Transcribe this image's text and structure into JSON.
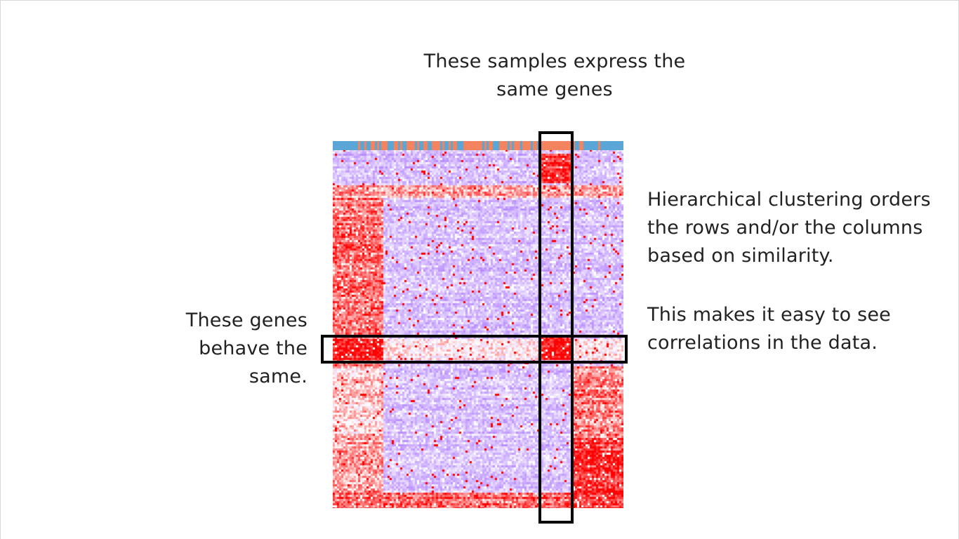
{
  "captions": {
    "top": {
      "line1": "These samples express the",
      "line2": "same genes"
    },
    "right": {
      "line1": "Hierarchical clustering orders",
      "line2": "the rows and/or the columns",
      "line3": "based on similarity."
    },
    "right_2": {
      "line1": "This makes it easy to see",
      "line2": "correlations in the data."
    },
    "left": {
      "line1": "These genes",
      "line2": "behave the",
      "line3": "same."
    }
  },
  "colors": {
    "low": "#b88cff",
    "mid": "#ffffff",
    "high": "#ff0000",
    "sample_group_a": "#5aa6d6",
    "sample_group_b": "#f4845f",
    "highlight_outline": "#000000"
  },
  "icons": {
    "heatmap": "clustered-heatmap"
  }
}
